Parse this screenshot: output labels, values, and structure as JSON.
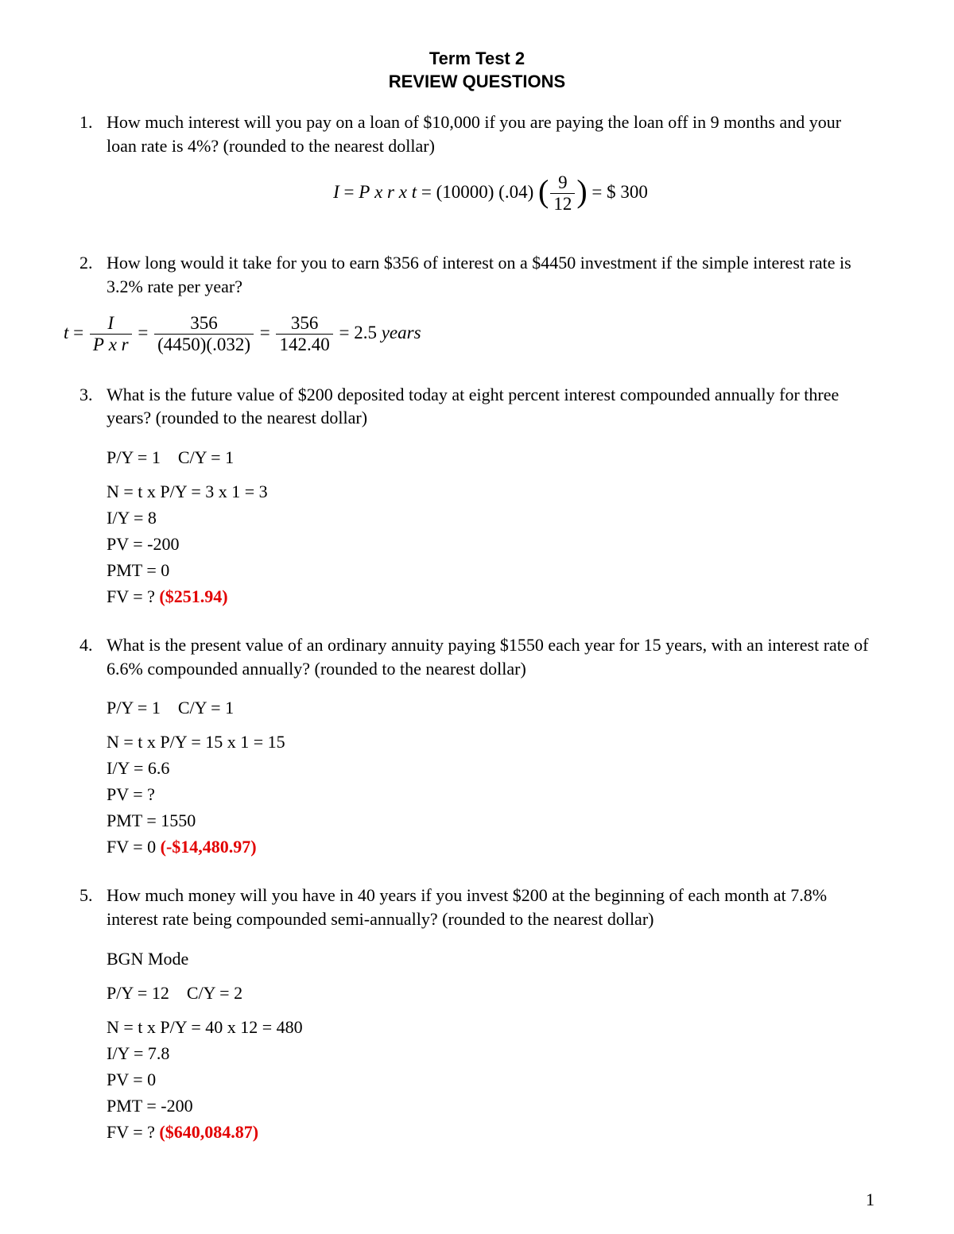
{
  "header": {
    "line1": "Term Test 2",
    "line2": "REVIEW QUESTIONS"
  },
  "questions": [
    {
      "num": "1.",
      "text": "How much interest will you pay on a loan of $10,000 if you are paying the loan off in 9 months and your loan rate is 4%? (rounded to the nearest dollar)",
      "formula": {
        "lhs_I": "I",
        "eq1": "=",
        "P": "P",
        "x1": "x",
        "r": "r",
        "x2": "x",
        "t": "t",
        "eq2": "=",
        "open1": "(",
        "v1": "10000",
        "close1": ")",
        "open2": "(",
        "v2": ".04",
        "close2": ")",
        "open3": "(",
        "frac_num": "9",
        "frac_den": "12",
        "close3": ")",
        "eq3": "=",
        "dollar": "$",
        "ans": "300"
      }
    },
    {
      "num": "2.",
      "text": "How long would it take for you to earn $356 of interest on a $4450 investment if the simple interest rate is 3.2% rate per year?",
      "formula": {
        "t": "t",
        "eq1": "=",
        "f1_num": "I",
        "f1_den_P": "P",
        "f1_den_x": "x",
        "f1_den_r": "r",
        "eq2": "=",
        "f2_num": "356",
        "f2_den": "(4450)(.032)",
        "eq3": "=",
        "f3_num": "356",
        "f3_den": "142.40",
        "eq4": "=",
        "val": "2.5",
        "unit": "years"
      }
    },
    {
      "num": "3.",
      "text": "What is the future value of $200 deposited today at eight percent interest compounded annually for three years? (rounded to the nearest dollar)",
      "work": {
        "py_cy": "P/Y = 1    C/Y = 1",
        "n": "N = t x P/Y = 3 x 1 = 3",
        "iy": "I/Y = 8",
        "pv": "PV = -200",
        "pmt": "PMT = 0",
        "fv_label": "FV = ? ",
        "answer": "($251.94)"
      }
    },
    {
      "num": "4.",
      "text": "What is the present value of an ordinary annuity paying $1550 each year for 15 years, with an interest rate of 6.6% compounded annually? (rounded to the nearest dollar)",
      "work": {
        "py_cy": "P/Y = 1    C/Y = 1",
        "n": "N = t x P/Y = 15 x 1 = 15",
        "iy": "I/Y = 6.6",
        "pv": "PV = ?",
        "pmt": "PMT = 1550",
        "fv_label": "FV = 0 ",
        "answer": "(-$14,480.97)"
      }
    },
    {
      "num": "5.",
      "text": "How much money will you have in 40 years if you invest $200 at the beginning of each month at 7.8% interest rate being compounded semi-annually? (rounded to the nearest dollar)",
      "work": {
        "mode": "BGN Mode",
        "py_cy": "P/Y = 12    C/Y = 2",
        "n": "N = t x P/Y = 40 x 12 = 480",
        "iy": "I/Y = 7.8",
        "pv": "PV = 0",
        "pmt": "PMT = -200",
        "fv_label": "FV = ? ",
        "answer": "($640,084.87)"
      }
    }
  ],
  "page_number": "1",
  "colors": {
    "text": "#000000",
    "answer": "#e20000",
    "background": "#ffffff"
  },
  "typography": {
    "body_family": "Times New Roman",
    "header_family": "Arial",
    "body_size_pt": 16,
    "header_size_pt": 16
  }
}
